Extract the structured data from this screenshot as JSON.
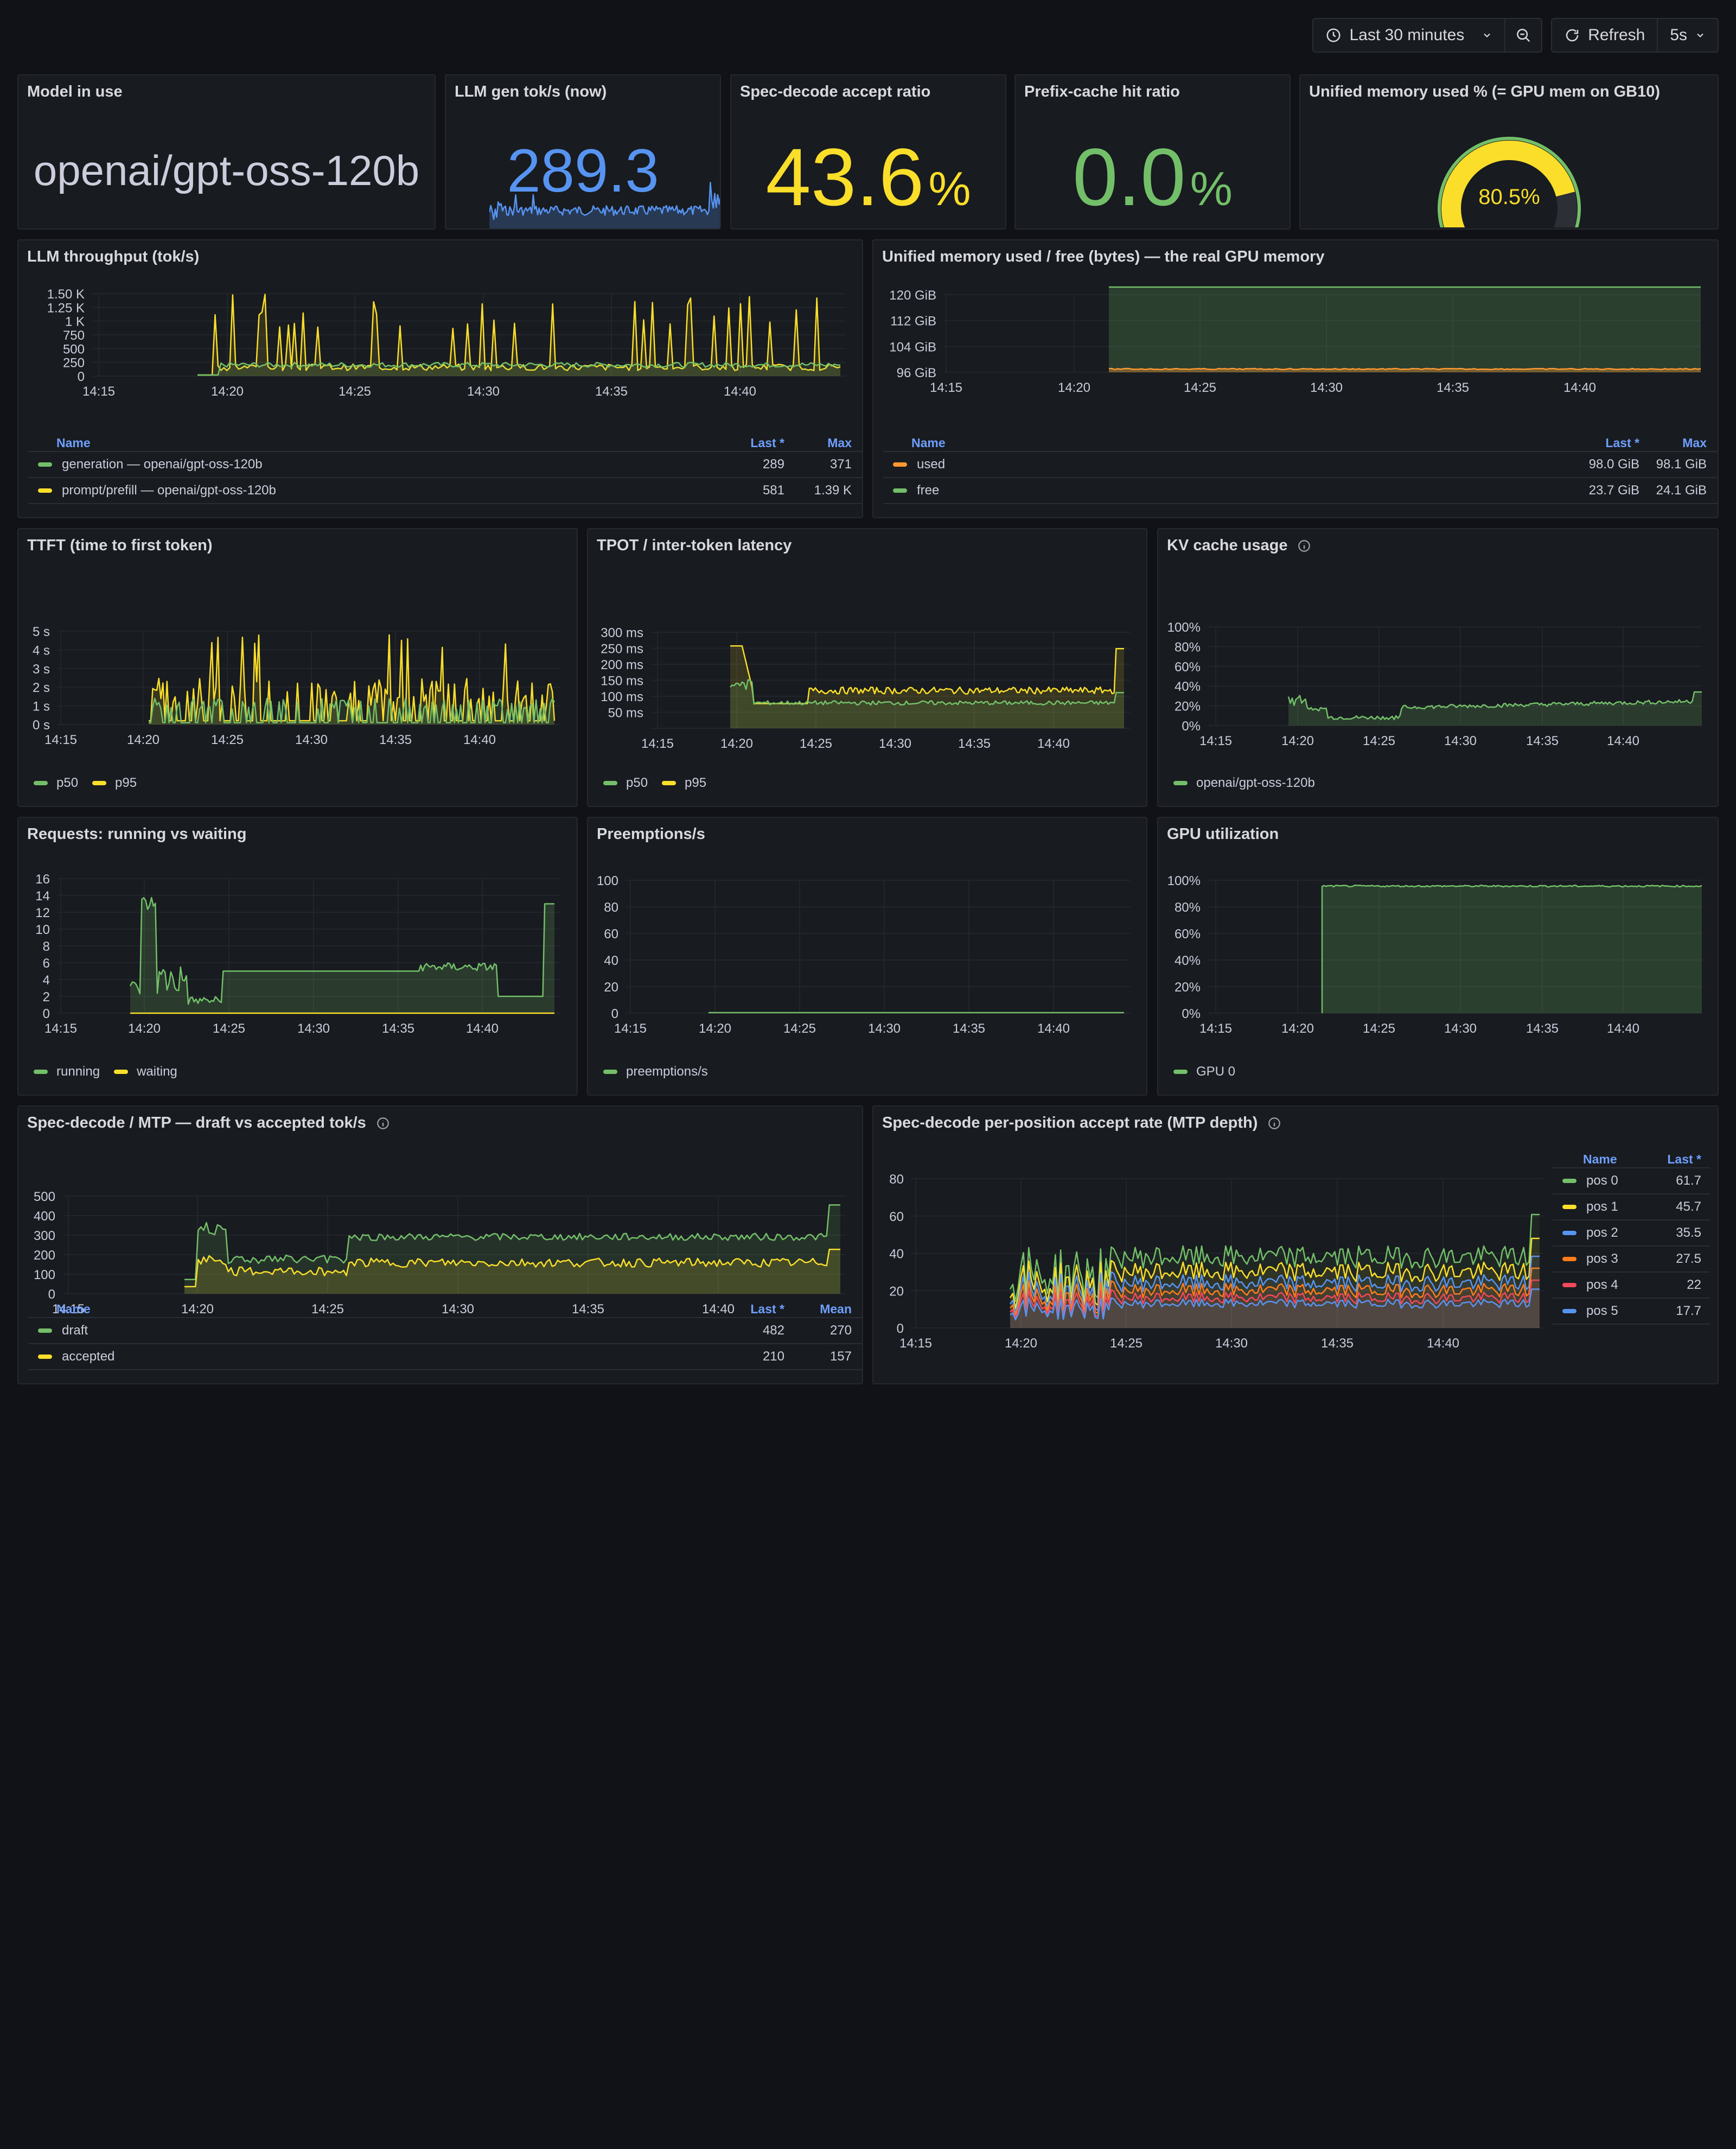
{
  "toolbar": {
    "time_range": "Last 30 minutes",
    "refresh_label": "Refresh",
    "refresh_interval": "5s"
  },
  "colors": {
    "green": "#73bf69",
    "yellow": "#fade2a",
    "blue": "#5794f2",
    "orange": "#ff9830",
    "red": "#f2495c",
    "orange2": "#ff7d1a",
    "red2": "#e24d42"
  },
  "stats": {
    "model": {
      "title": "Model in use",
      "value": "openai/gpt-oss-120b"
    },
    "gen": {
      "title": "LLM gen tok/s (now)",
      "value": "289.3"
    },
    "spec": {
      "title": "Spec-decode accept ratio",
      "value": "43.6",
      "unit": "%"
    },
    "prefix": {
      "title": "Prefix-cache hit ratio",
      "value": "0.0",
      "unit": "%"
    },
    "mem": {
      "title": "Unified memory used % (= GPU mem on GB10)",
      "value": "80.5%",
      "fraction": 0.805
    }
  },
  "panels": {
    "throughput": {
      "title": "LLM throughput (tok/s)",
      "yticks": [
        "1.50 K",
        "1.25 K",
        "1 K",
        "750",
        "500",
        "250",
        "0"
      ],
      "xticks": [
        "14:15",
        "14:20",
        "14:25",
        "14:30",
        "14:35",
        "14:40"
      ],
      "table_headers": {
        "name": "Name",
        "last": "Last *",
        "max": "Max"
      },
      "rows": [
        {
          "name": "generation — openai/gpt-oss-120b",
          "last": "289",
          "max": "371"
        },
        {
          "name": "prompt/prefill — openai/gpt-oss-120b",
          "last": "581",
          "max": "1.39 K"
        }
      ]
    },
    "memory": {
      "title": "Unified memory used / free (bytes) — the real GPU memory",
      "yticks": [
        "120 GiB",
        "112 GiB",
        "104 GiB",
        "96 GiB"
      ],
      "xticks": [
        "14:15",
        "14:20",
        "14:25",
        "14:30",
        "14:35",
        "14:40"
      ],
      "table_headers": {
        "name": "Name",
        "last": "Last *",
        "max": "Max"
      },
      "rows": [
        {
          "name": "used",
          "last": "98.0 GiB",
          "max": "98.1 GiB"
        },
        {
          "name": "free",
          "last": "23.7 GiB",
          "max": "24.1 GiB"
        }
      ]
    },
    "ttft": {
      "title": "TTFT (time to first token)",
      "yticks": [
        "5 s",
        "4 s",
        "3 s",
        "2 s",
        "1 s",
        "0 s"
      ],
      "xticks": [
        "14:15",
        "14:20",
        "14:25",
        "14:30",
        "14:35",
        "14:40"
      ],
      "legend": [
        "p50",
        "p95"
      ]
    },
    "tpot": {
      "title": "TPOT / inter-token latency",
      "yticks": [
        "300 ms",
        "250 ms",
        "200 ms",
        "150 ms",
        "100 ms",
        "50 ms"
      ],
      "xticks": [
        "14:15",
        "14:20",
        "14:25",
        "14:30",
        "14:35",
        "14:40"
      ],
      "legend": [
        "p50",
        "p95"
      ]
    },
    "kv": {
      "title": "KV cache usage",
      "yticks": [
        "100%",
        "80%",
        "60%",
        "40%",
        "20%",
        "0%"
      ],
      "xticks": [
        "14:15",
        "14:20",
        "14:25",
        "14:30",
        "14:35",
        "14:40"
      ],
      "legend": [
        "openai/gpt-oss-120b"
      ]
    },
    "requests": {
      "title": "Requests: running vs waiting",
      "yticks": [
        "16",
        "14",
        "12",
        "10",
        "8",
        "6",
        "4",
        "2",
        "0"
      ],
      "xticks": [
        "14:15",
        "14:20",
        "14:25",
        "14:30",
        "14:35",
        "14:40"
      ],
      "legend": [
        "running",
        "waiting"
      ]
    },
    "preempt": {
      "title": "Preemptions/s",
      "yticks": [
        "100",
        "80",
        "60",
        "40",
        "20",
        "0"
      ],
      "xticks": [
        "14:15",
        "14:20",
        "14:25",
        "14:30",
        "14:35",
        "14:40"
      ],
      "legend": [
        "preemptions/s"
      ]
    },
    "gpu": {
      "title": "GPU utilization",
      "yticks": [
        "100%",
        "80%",
        "60%",
        "40%",
        "20%",
        "0%"
      ],
      "xticks": [
        "14:15",
        "14:20",
        "14:25",
        "14:30",
        "14:35",
        "14:40"
      ],
      "legend": [
        "GPU 0"
      ]
    },
    "mtp": {
      "title": "Spec-decode / MTP — draft vs accepted tok/s",
      "yticks": [
        "500",
        "400",
        "300",
        "200",
        "100",
        "0"
      ],
      "xticks": [
        "14:15",
        "14:20",
        "14:25",
        "14:30",
        "14:35",
        "14:40"
      ],
      "table_headers": {
        "name": "Name",
        "last": "Last *",
        "mean": "Mean"
      },
      "rows": [
        {
          "name": "draft",
          "last": "482",
          "mean": "270"
        },
        {
          "name": "accepted",
          "last": "210",
          "mean": "157"
        }
      ]
    },
    "perpos": {
      "title": "Spec-decode per-position accept rate (MTP depth)",
      "yticks": [
        "80",
        "60",
        "40",
        "20",
        "0"
      ],
      "xticks": [
        "14:15",
        "14:20",
        "14:25",
        "14:30",
        "14:35",
        "14:40"
      ],
      "table_headers": {
        "name": "Name",
        "last": "Last *"
      },
      "rows": [
        {
          "name": "pos 0",
          "last": "61.7"
        },
        {
          "name": "pos 1",
          "last": "45.7"
        },
        {
          "name": "pos 2",
          "last": "35.5"
        },
        {
          "name": "pos 3",
          "last": "27.5"
        },
        {
          "name": "pos 4",
          "last": "22"
        },
        {
          "name": "pos 5",
          "last": "17.7"
        }
      ]
    }
  }
}
